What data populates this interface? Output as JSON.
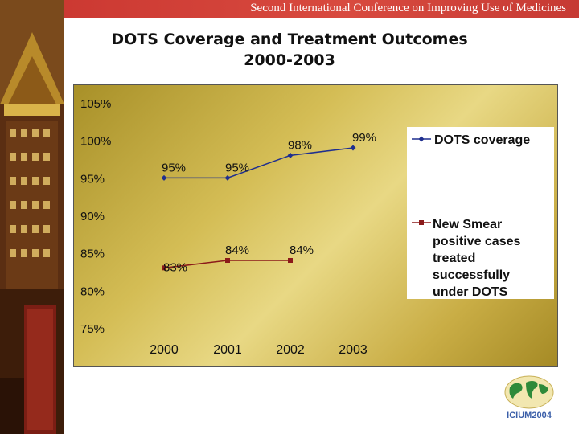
{
  "banner": {
    "text": "Second International Conference on Improving Use of Medicines"
  },
  "title": {
    "line1": "DOTS Coverage and Treatment Outcomes",
    "line2": "2000-2003"
  },
  "logo": {
    "text": "ICIUM2004"
  },
  "chart_data": {
    "type": "line",
    "title": "DOTS Coverage and Treatment Outcomes 2000-2003",
    "categories": [
      "2000",
      "2001",
      "2002",
      "2003"
    ],
    "ylim": [
      75,
      105
    ],
    "yticks": [
      "105%",
      "100%",
      "95%",
      "90%",
      "85%",
      "80%",
      "75%"
    ],
    "ytick_values": [
      105,
      100,
      95,
      90,
      85,
      80,
      75
    ],
    "grid": false,
    "legend": "right",
    "series": [
      {
        "name": "DOTS coverage",
        "color": "#1f2f8f",
        "marker": "diamond",
        "values": [
          95,
          95,
          98,
          99
        ],
        "labels": [
          "95%",
          "95%",
          "98%",
          "99%"
        ]
      },
      {
        "name": "New Smear positive cases treated successfully under DOTS",
        "color": "#8b1a1a",
        "marker": "square",
        "values": [
          83,
          84,
          84,
          null
        ],
        "labels": [
          "83%",
          "84%",
          "84%",
          ""
        ],
        "legend_lines": [
          "New Smear",
          "positive cases",
          "treated",
          "successfully",
          "under DOTS"
        ]
      }
    ]
  }
}
